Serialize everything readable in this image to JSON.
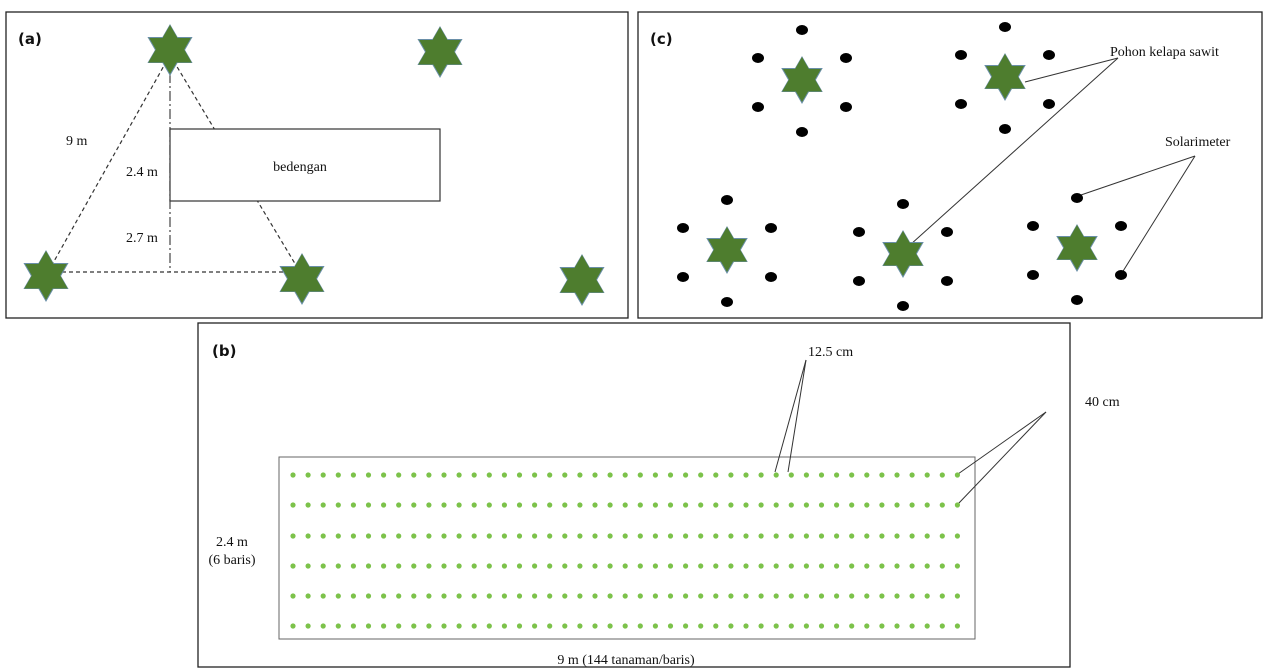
{
  "panel_a": {
    "label": "(a)",
    "distance_label": "9 m",
    "bed_width_label": "2.4 m",
    "gap_label": "2.7 m",
    "bed_label": "bedengan"
  },
  "panel_b": {
    "label": "(b)",
    "plant_spacing_label": "12.5 cm",
    "row_spacing_label": "40 cm",
    "width_label": "2.4 m",
    "rows_label": "(6 baris)",
    "length_label": "9 m (144 tanaman/baris)"
  },
  "panel_c": {
    "label": "(c)",
    "tree_label": "Pohon kelapa sawit",
    "sensor_label": "Solarimeter"
  }
}
